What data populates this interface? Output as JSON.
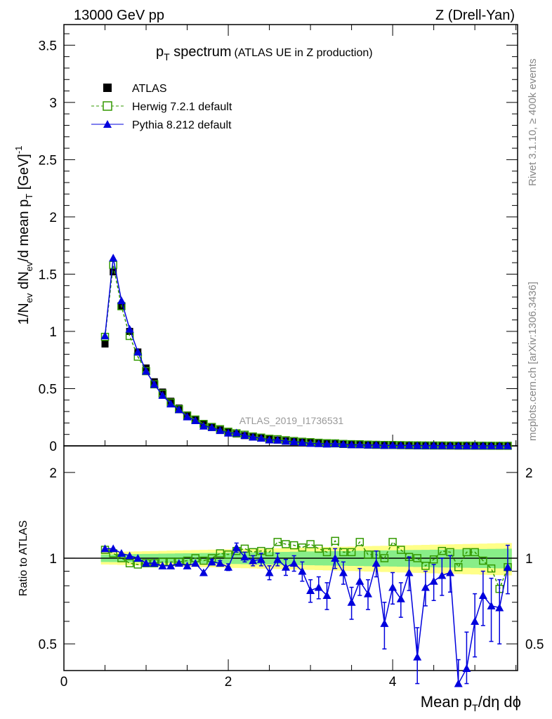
{
  "chart_data": {
    "type": "line",
    "title": "p",
    "title_sub": "T",
    "title_main": " spectrum",
    "title_small": "(ATLAS UE in Z production)",
    "top_left": "13000 GeV pp",
    "top_right": "Z (Drell-Yan)",
    "side_text_1": "Rivet 3.1.10, ≥ 400k events",
    "side_text_2": "mcplots.cern.ch [arXiv:1306.3436]",
    "watermark": "ATLAS_2019_I1736531",
    "ylabel": "1/N_ev dN_ev/d mean p_T [GeV]^-1",
    "ylabel_parts": {
      "a": "1/N",
      "b": "ev",
      "c": " dN",
      "d": "ev",
      "e": "/d mean p",
      "f": "T",
      "g": " [GeV]",
      "h": "-1"
    },
    "xlabel_parts": {
      "a": "Mean p",
      "b": "T",
      "c": "/dη dϕ"
    },
    "ratio_ylabel": "Ratio to ATLAS",
    "xlim": [
      0,
      5.52
    ],
    "ylim": [
      0,
      3.68
    ],
    "ratio_ylim": [
      0.403,
      2.48
    ],
    "x_ticks": [
      "0",
      "2",
      "4"
    ],
    "y_ticks": [
      "0",
      "0.5",
      "1",
      "1.5",
      "2",
      "2.5",
      "3",
      "3.5"
    ],
    "ratio_ticks": [
      "0.5",
      "1",
      "2"
    ],
    "legend": [
      {
        "name": "ATLAS",
        "color": "#000000"
      },
      {
        "name": "Herwig 7.2.1 default",
        "color": "#339900"
      },
      {
        "name": "Pythia 8.212 default",
        "color": "#0000dd"
      }
    ],
    "x": [
      0.5,
      0.6,
      0.7,
      0.8,
      0.9,
      1.0,
      1.1,
      1.2,
      1.3,
      1.4,
      1.5,
      1.6,
      1.7,
      1.8,
      1.9,
      2.0,
      2.1,
      2.2,
      2.3,
      2.4,
      2.5,
      2.6,
      2.7,
      2.8,
      2.9,
      3.0,
      3.1,
      3.2,
      3.3,
      3.4,
      3.5,
      3.6,
      3.7,
      3.8,
      3.9,
      4.0,
      4.1,
      4.2,
      4.3,
      4.4,
      4.5,
      4.6,
      4.7,
      4.8,
      4.9,
      5.0,
      5.1,
      5.2,
      5.3,
      5.4
    ],
    "atlas": [
      0.89,
      1.52,
      1.22,
      1.0,
      0.82,
      0.68,
      0.56,
      0.47,
      0.39,
      0.33,
      0.27,
      0.23,
      0.195,
      0.165,
      0.14,
      0.12,
      0.104,
      0.09,
      0.078,
      0.068,
      0.059,
      0.051,
      0.044,
      0.038,
      0.033,
      0.029,
      0.025,
      0.022,
      0.019,
      0.016,
      0.014,
      0.012,
      0.0105,
      0.009,
      0.0078,
      0.0068,
      0.0059,
      0.0051,
      0.0044,
      0.0038,
      0.0033,
      0.0029,
      0.0025,
      0.0022,
      0.0019,
      0.0016,
      0.0014,
      0.0012,
      0.0011,
      0.0009
    ],
    "herwig_ratio": [
      1.07,
      1.04,
      1.0,
      0.96,
      0.95,
      0.96,
      0.96,
      0.97,
      0.97,
      0.97,
      0.98,
      1.0,
      0.98,
      1.0,
      1.04,
      1.03,
      1.06,
      1.08,
      1.05,
      1.06,
      1.05,
      1.14,
      1.12,
      1.11,
      1.09,
      1.12,
      1.08,
      1.05,
      1.15,
      1.05,
      1.05,
      1.14,
      1.03,
      1.03,
      1.0,
      1.14,
      1.07,
      1.01,
      1.0,
      0.94,
      0.99,
      1.06,
      1.05,
      0.93,
      1.05,
      1.05,
      0.98,
      0.92,
      0.78,
      0.93
    ],
    "pythia_ratio": [
      1.08,
      1.08,
      1.04,
      1.02,
      1.0,
      0.96,
      0.96,
      0.94,
      0.94,
      0.96,
      0.94,
      0.96,
      0.89,
      0.97,
      0.96,
      0.93,
      1.09,
      1.01,
      0.98,
      0.99,
      0.89,
      0.99,
      0.93,
      0.96,
      0.9,
      0.77,
      0.79,
      0.74,
      1.0,
      0.89,
      0.7,
      0.83,
      0.75,
      0.96,
      0.59,
      0.79,
      0.72,
      0.89,
      0.45,
      0.79,
      0.83,
      0.87,
      0.89,
      0.3,
      0.41,
      0.6,
      0.74,
      0.68,
      0.67,
      0.93
    ],
    "pythia_err": [
      0.01,
      0.01,
      0.01,
      0.01,
      0.01,
      0.01,
      0.01,
      0.01,
      0.01,
      0.01,
      0.01,
      0.01,
      0.015,
      0.02,
      0.02,
      0.025,
      0.04,
      0.04,
      0.04,
      0.05,
      0.05,
      0.05,
      0.06,
      0.06,
      0.07,
      0.07,
      0.07,
      0.08,
      0.08,
      0.08,
      0.09,
      0.09,
      0.09,
      0.1,
      0.11,
      0.1,
      0.1,
      0.12,
      0.12,
      0.11,
      0.12,
      0.13,
      0.13,
      0.14,
      0.14,
      0.15,
      0.16,
      0.17,
      0.17,
      0.18
    ],
    "band_inner": [
      0.03,
      0.08
    ],
    "band_outer": [
      0.05,
      0.13
    ]
  }
}
